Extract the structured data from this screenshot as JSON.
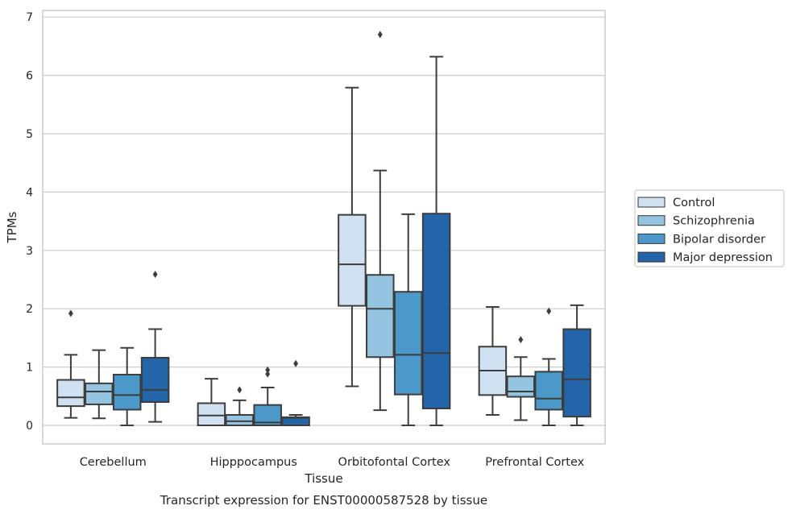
{
  "chart_data": {
    "type": "box",
    "title": "",
    "caption": "Transcript expression for ENST00000587528 by tissue",
    "xlabel": "Tissue",
    "ylabel": "TPMs",
    "ylim": [
      -0.3,
      7.05
    ],
    "yticks": [
      0,
      1,
      2,
      3,
      4,
      5,
      6,
      7
    ],
    "grid": "horizontal",
    "legend_position": "right",
    "categories": [
      "Cerebellum",
      "Hipppocampus",
      "Orbitofontal Cortex",
      "Prefrontal Cortex"
    ],
    "series": [
      {
        "name": "Control",
        "color": "#d0e1f2",
        "boxes": [
          {
            "whislo": 0.13,
            "q1": 0.33,
            "med": 0.48,
            "q3": 0.78,
            "whishi": 1.21,
            "fliers": [
              1.92
            ]
          },
          {
            "whislo": 0.0,
            "q1": 0.0,
            "med": 0.17,
            "q3": 0.38,
            "whishi": 0.8,
            "fliers": []
          },
          {
            "whislo": 0.67,
            "q1": 2.05,
            "med": 2.76,
            "q3": 3.61,
            "whishi": 5.79,
            "fliers": []
          },
          {
            "whislo": 0.18,
            "q1": 0.52,
            "med": 0.94,
            "q3": 1.35,
            "whishi": 2.03,
            "fliers": []
          }
        ]
      },
      {
        "name": "Schizophrenia",
        "color": "#94c4df",
        "boxes": [
          {
            "whislo": 0.12,
            "q1": 0.36,
            "med": 0.58,
            "q3": 0.72,
            "whishi": 1.29,
            "fliers": []
          },
          {
            "whislo": 0.0,
            "q1": 0.0,
            "med": 0.07,
            "q3": 0.18,
            "whishi": 0.43,
            "fliers": [
              0.61
            ]
          },
          {
            "whislo": 0.26,
            "q1": 1.17,
            "med": 2.0,
            "q3": 2.58,
            "whishi": 4.37,
            "fliers": [
              6.7
            ]
          },
          {
            "whislo": 0.09,
            "q1": 0.49,
            "med": 0.58,
            "q3": 0.84,
            "whishi": 1.17,
            "fliers": [
              1.47
            ]
          }
        ]
      },
      {
        "name": "Bipolar disorder",
        "color": "#4b98c9",
        "boxes": [
          {
            "whislo": 0.0,
            "q1": 0.27,
            "med": 0.52,
            "q3": 0.87,
            "whishi": 1.33,
            "fliers": []
          },
          {
            "whislo": 0.0,
            "q1": 0.0,
            "med": 0.05,
            "q3": 0.35,
            "whishi": 0.65,
            "fliers": [
              0.88,
              0.95
            ]
          },
          {
            "whislo": 0.0,
            "q1": 0.53,
            "med": 1.21,
            "q3": 2.29,
            "whishi": 3.62,
            "fliers": []
          },
          {
            "whislo": 0.0,
            "q1": 0.27,
            "med": 0.46,
            "q3": 0.92,
            "whishi": 1.14,
            "fliers": [
              1.96
            ]
          }
        ]
      },
      {
        "name": "Major depression",
        "color": "#2464a9",
        "boxes": [
          {
            "whislo": 0.06,
            "q1": 0.4,
            "med": 0.61,
            "q3": 1.16,
            "whishi": 1.65,
            "fliers": [
              2.59
            ]
          },
          {
            "whislo": 0.0,
            "q1": 0.0,
            "med": 0.13,
            "q3": 0.14,
            "whishi": 0.18,
            "fliers": [
              1.06
            ]
          },
          {
            "whislo": 0.0,
            "q1": 0.29,
            "med": 1.24,
            "q3": 3.63,
            "whishi": 6.32,
            "fliers": []
          },
          {
            "whislo": 0.0,
            "q1": 0.15,
            "med": 0.79,
            "q3": 1.65,
            "whishi": 2.06,
            "fliers": []
          }
        ]
      }
    ]
  }
}
